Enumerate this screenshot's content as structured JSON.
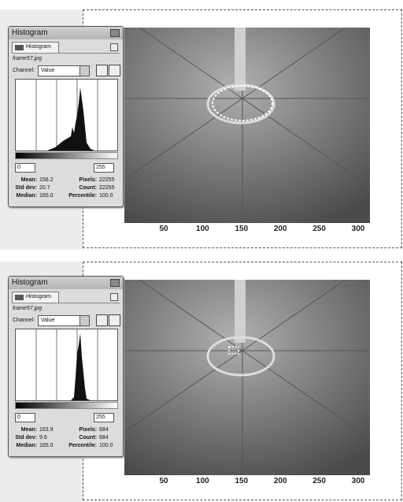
{
  "panels": [
    {
      "dialog": {
        "title": "Histogram",
        "tab": "Histogram",
        "image_name": "frame57.jpg",
        "channel_label": "Channel:",
        "channel": "Value",
        "range_low": "0",
        "range_high": "255",
        "stats": [
          {
            "label": "Mean:",
            "value": "156.2"
          },
          {
            "label": "Pixels:",
            "value": "22255"
          },
          {
            "label": "Std dev:",
            "value": "20.7"
          },
          {
            "label": "Count:",
            "value": "22255"
          },
          {
            "label": "Median:",
            "value": "165.0"
          },
          {
            "label": "Percentile:",
            "value": "100.0"
          }
        ]
      },
      "axis_ticks": [
        "50",
        "100",
        "150",
        "200",
        "250",
        "300"
      ]
    },
    {
      "dialog": {
        "title": "Histogram",
        "tab": "Histogram",
        "image_name": "frame57.jpg",
        "channel_label": "Channel:",
        "channel": "Value",
        "range_low": "0",
        "range_high": "255",
        "stats": [
          {
            "label": "Mean:",
            "value": "163.9"
          },
          {
            "label": "Pixels:",
            "value": "684"
          },
          {
            "label": "Std dev:",
            "value": "9.6"
          },
          {
            "label": "Count:",
            "value": "684"
          },
          {
            "label": "Median:",
            "value": "165.0"
          },
          {
            "label": "Percentile:",
            "value": "100.0"
          }
        ]
      },
      "axis_ticks": [
        "50",
        "100",
        "150",
        "200",
        "250",
        "300"
      ]
    }
  ]
}
